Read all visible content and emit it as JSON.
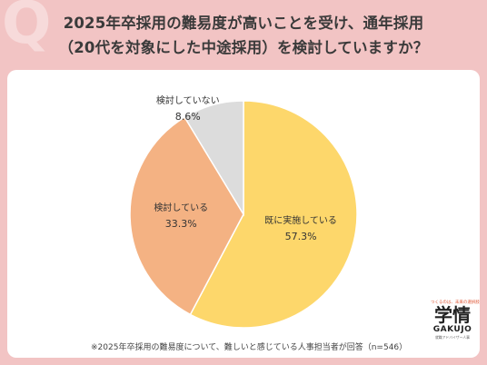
{
  "title_line1": "2025年卒採用の難易度が高いことを受け、通年採用",
  "title_line2": "（20代を対象にした中途採用）を検討していますか？",
  "chart_data": {
    "type": "pie",
    "slices": [
      {
        "label": "既に実施している",
        "value": 57.3,
        "display": "57.3%",
        "color": "#fdd76b"
      },
      {
        "label": "検討している",
        "value": 33.3,
        "display": "33.3%",
        "color": "#f4b283"
      },
      {
        "label": "検討していない",
        "value": 8.6,
        "display": "8.6%",
        "color": "#dcdcdc"
      }
    ],
    "start": "12 o'clock",
    "direction": "clockwise"
  },
  "footnote": "※2025年卒採用の難易度について、難しいと感じている人事担当者が回答（n=546）",
  "logo": {
    "tagline": "つくるのは、未来の選択肢",
    "kanji": "学情",
    "brand": "GAKUJO",
    "sub": "就職アドバイザー人事"
  }
}
